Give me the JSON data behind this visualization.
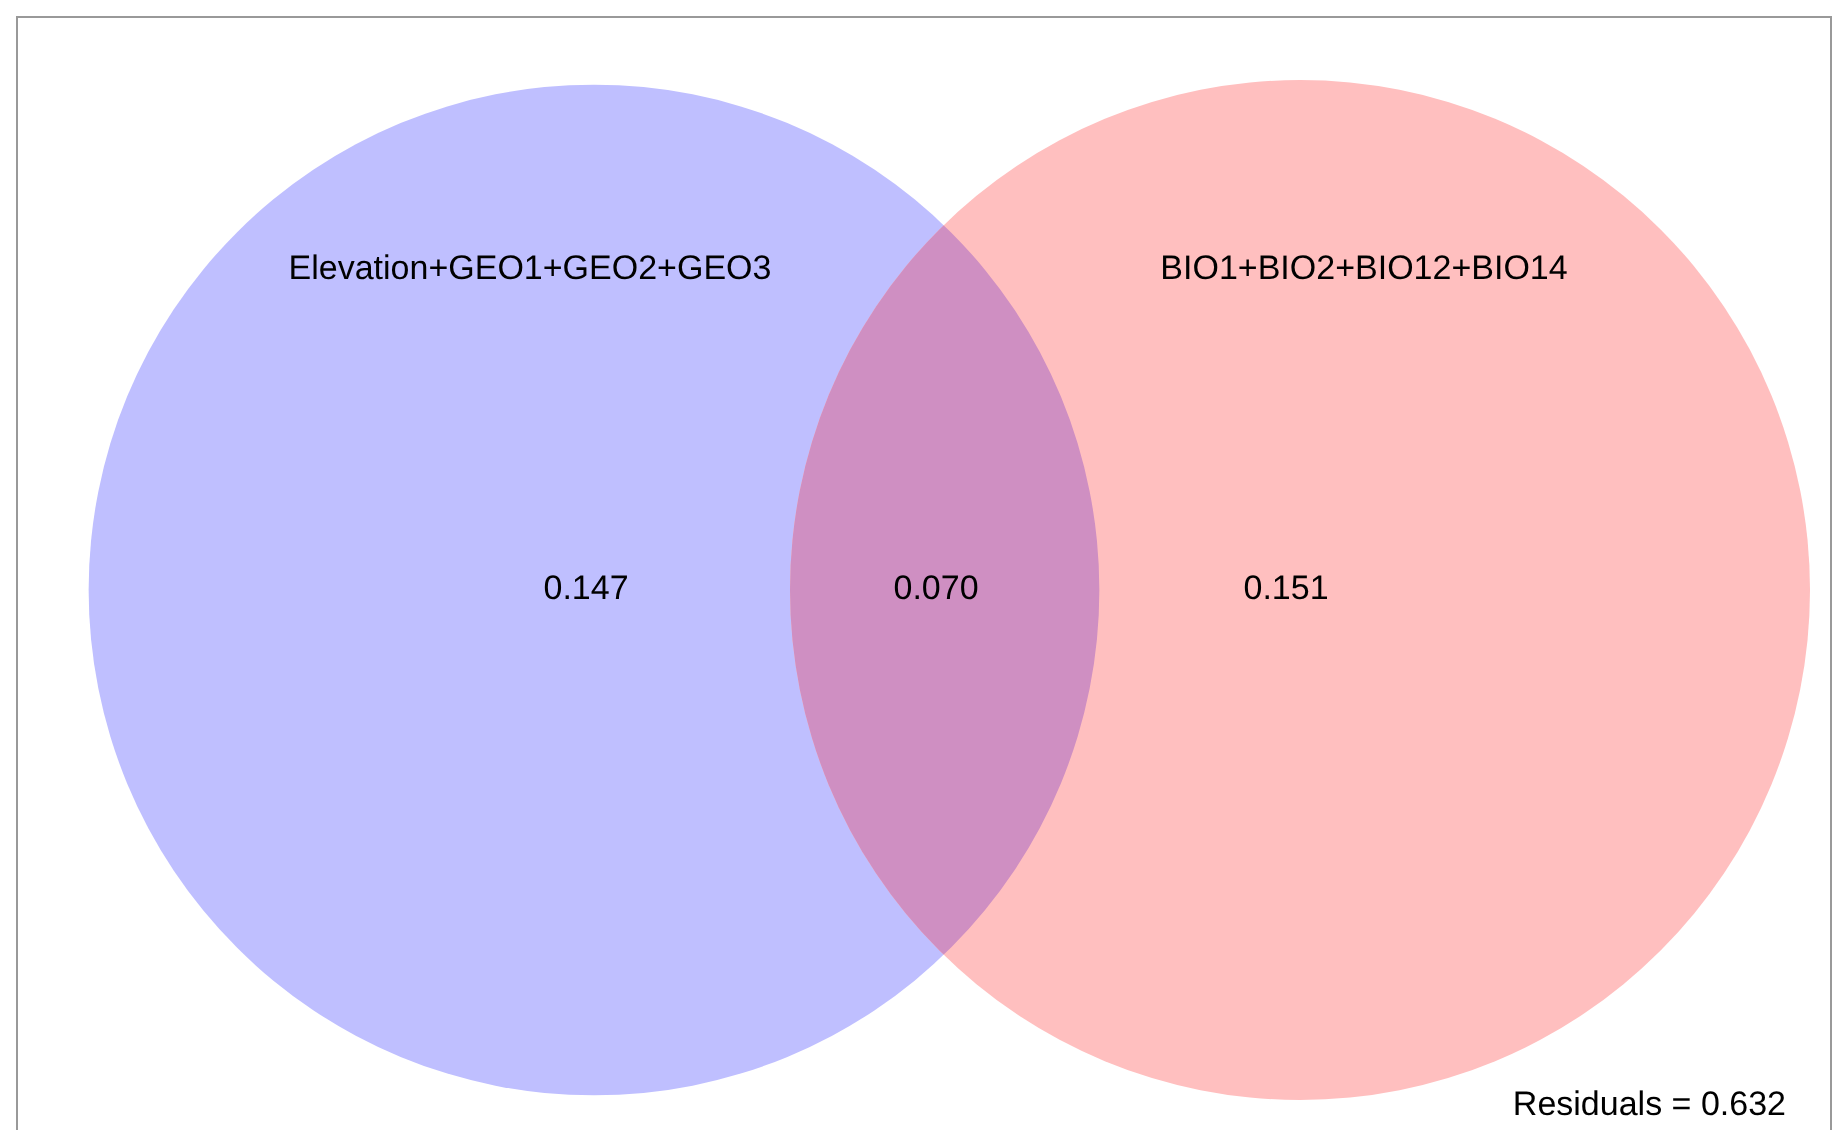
{
  "chart_data": {
    "type": "other",
    "categories": [
      "Elevation+GEO1+GEO2+GEO3",
      null,
      "BIO1+BIO2+BIO12+BIO14"
    ],
    "values": [
      0.147,
      0.07,
      0.151
    ],
    "colors": [
      "#bfbfff",
      "#cf8fc2",
      "#ffbfbf"
    ],
    "value_labels": [
      "0.147",
      "0.070",
      "0.151"
    ],
    "annotations": [
      "Residuals = 0.632"
    ]
  }
}
